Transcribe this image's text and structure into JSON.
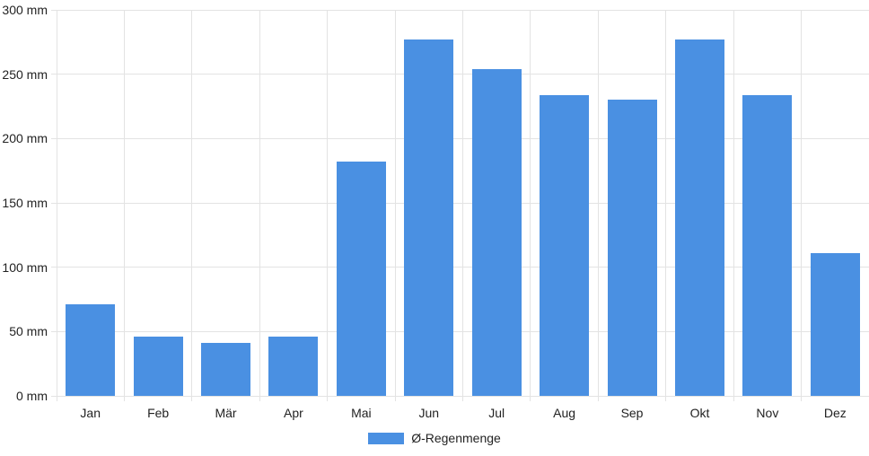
{
  "chart_data": {
    "type": "bar",
    "title": "",
    "categories": [
      "Jan",
      "Feb",
      "Mär",
      "Apr",
      "Mai",
      "Jun",
      "Jul",
      "Aug",
      "Sep",
      "Okt",
      "Nov",
      "Dez"
    ],
    "values": [
      71,
      46,
      41,
      46,
      182,
      277,
      254,
      234,
      230,
      277,
      234,
      111
    ],
    "series": [
      {
        "name": "Ø-Regenmenge",
        "values": [
          71,
          46,
          41,
          46,
          182,
          277,
          254,
          234,
          230,
          277,
          234,
          111
        ]
      }
    ],
    "legend_label": "Ø-Regenmenge",
    "legend_position": "bottom",
    "unit": "mm",
    "xlabel": "",
    "ylabel": "",
    "ylim": [
      0,
      300
    ],
    "ytick_values": [
      0,
      50,
      100,
      150,
      200,
      250,
      300
    ],
    "ytick_labels": [
      "0 mm",
      "50 mm",
      "100 mm",
      "150 mm",
      "200 mm",
      "250 mm",
      "300 mm"
    ],
    "grid": true,
    "colors": {
      "bar": "#4a90e2",
      "grid": "#e3e3e3",
      "text": "#222222",
      "background": "#ffffff"
    }
  }
}
